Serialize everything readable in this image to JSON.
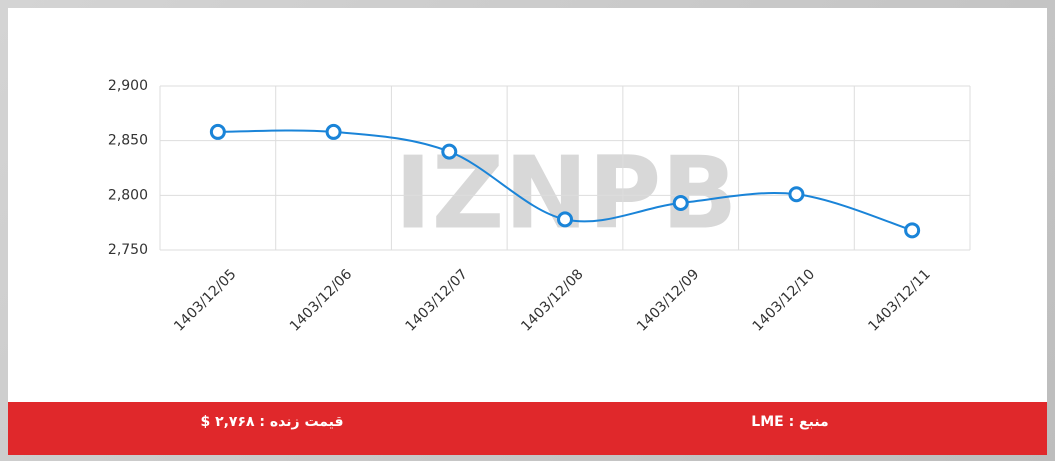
{
  "chart_data": {
    "type": "line",
    "categories": [
      "1403/12/05",
      "1403/12/06",
      "1403/12/07",
      "1403/12/08",
      "1403/12/09",
      "1403/12/10",
      "1403/12/11"
    ],
    "series": [
      {
        "name": "LME",
        "color": "#1a84d8",
        "values": [
          2858,
          2858,
          2840,
          2778,
          2793,
          2801,
          2768
        ]
      }
    ],
    "ylim": [
      2750,
      2900
    ],
    "yticks": [
      {
        "value": 2750,
        "label": "2,750"
      },
      {
        "value": 2800,
        "label": "2,800"
      },
      {
        "value": 2850,
        "label": "2,850"
      },
      {
        "value": 2900,
        "label": "2,900"
      }
    ],
    "grid": true
  },
  "watermark": "IZNPB",
  "footer": {
    "price": "قیمت زنده : ۲,۷۶۸ $",
    "source": "منبع : LME"
  }
}
